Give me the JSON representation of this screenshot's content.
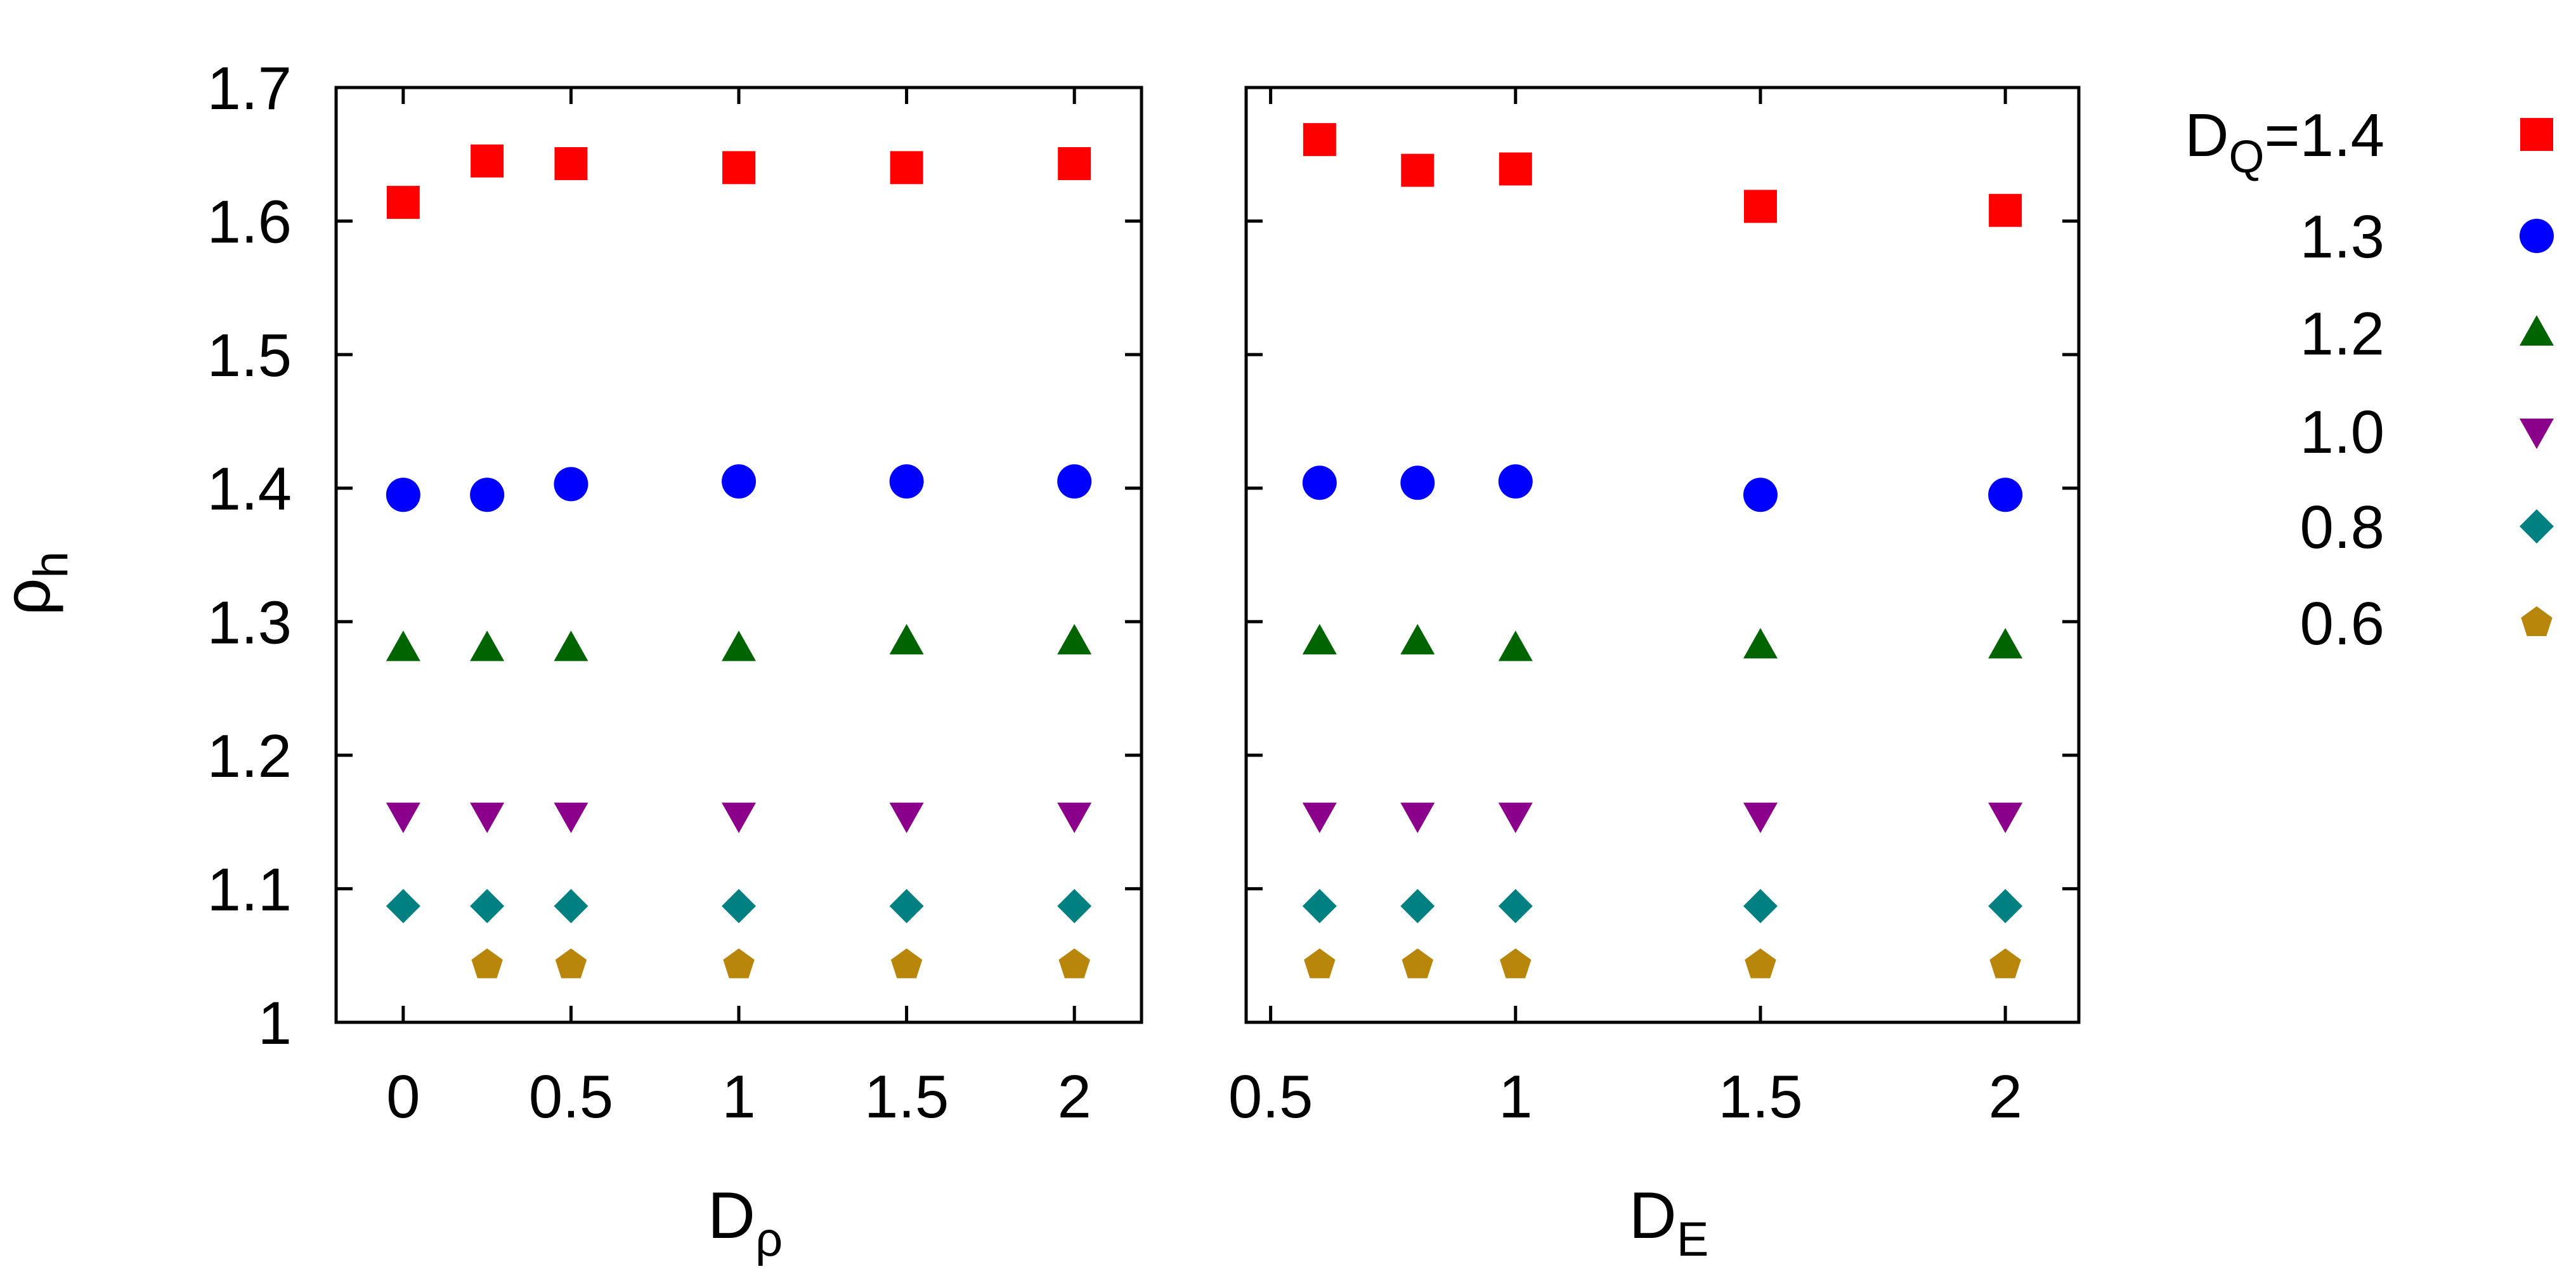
{
  "chart_data": {
    "type": "scatter",
    "ylabel_main": "ρ",
    "ylabel_sub": "h",
    "ylim": [
      1.0,
      1.7
    ],
    "yticks": [
      "1",
      "1.1",
      "1.2",
      "1.3",
      "1.4",
      "1.5",
      "1.6",
      "1.7"
    ],
    "grid": false,
    "legend": {
      "placement": "right",
      "title_main": "D",
      "title_sub": "Q",
      "title_suffix": "=",
      "labels": [
        "1.4",
        "1.3",
        "1.2",
        "1.0",
        "0.8",
        "0.6"
      ]
    },
    "series_style": [
      {
        "label": "1.4",
        "color": "#ff0000",
        "marker": "square"
      },
      {
        "label": "1.3",
        "color": "#0000ff",
        "marker": "circle"
      },
      {
        "label": "1.2",
        "color": "#006400",
        "marker": "triangle-up"
      },
      {
        "label": "1.0",
        "color": "#8b008b",
        "marker": "triangle-down"
      },
      {
        "label": "0.8",
        "color": "#008080",
        "marker": "diamond"
      },
      {
        "label": "0.6",
        "color": "#b8860b",
        "marker": "pentagon"
      }
    ],
    "panels": [
      {
        "xlabel_main": "D",
        "xlabel_sub": "ρ",
        "xlim": [
          -0.2,
          2.2
        ],
        "xticks": [
          "0",
          "0.5",
          "1",
          "1.5",
          "2"
        ],
        "series": [
          {
            "label": "1.4",
            "x": [
              0,
              0.25,
              0.5,
              1,
              1.5,
              2
            ],
            "y": [
              1.614,
              1.645,
              1.643,
              1.64,
              1.64,
              1.643
            ]
          },
          {
            "label": "1.3",
            "x": [
              0,
              0.25,
              0.5,
              1,
              1.5,
              2
            ],
            "y": [
              1.395,
              1.395,
              1.403,
              1.405,
              1.405,
              1.405
            ]
          },
          {
            "label": "1.2",
            "x": [
              0,
              0.25,
              0.5,
              1,
              1.5,
              2
            ],
            "y": [
              1.28,
              1.28,
              1.28,
              1.28,
              1.285,
              1.285
            ]
          },
          {
            "label": "1.0",
            "x": [
              0,
              0.25,
              0.5,
              1,
              1.5,
              2
            ],
            "y": [
              1.155,
              1.155,
              1.155,
              1.155,
              1.155,
              1.155
            ]
          },
          {
            "label": "0.8",
            "x": [
              0,
              0.25,
              0.5,
              1,
              1.5,
              2
            ],
            "y": [
              1.087,
              1.087,
              1.087,
              1.087,
              1.087,
              1.087
            ]
          },
          {
            "label": "0.6",
            "x": [
              0.25,
              0.5,
              1,
              1.5,
              2
            ],
            "y": [
              1.043,
              1.043,
              1.043,
              1.043,
              1.043
            ]
          }
        ]
      },
      {
        "xlabel_main": "D",
        "xlabel_sub": "E",
        "xlim": [
          0.45,
          2.15
        ],
        "xticks": [
          "0.5",
          "1",
          "1.5",
          "2"
        ],
        "series": [
          {
            "label": "1.4",
            "x": [
              0.6,
              0.8,
              1,
              1.5,
              2
            ],
            "y": [
              1.661,
              1.638,
              1.639,
              1.611,
              1.608
            ]
          },
          {
            "label": "1.3",
            "x": [
              0.6,
              0.8,
              1,
              1.5,
              2
            ],
            "y": [
              1.404,
              1.404,
              1.405,
              1.395,
              1.395
            ]
          },
          {
            "label": "1.2",
            "x": [
              0.6,
              0.8,
              1,
              1.5,
              2
            ],
            "y": [
              1.285,
              1.285,
              1.28,
              1.282,
              1.282
            ]
          },
          {
            "label": "1.0",
            "x": [
              0.6,
              0.8,
              1,
              1.5,
              2
            ],
            "y": [
              1.155,
              1.155,
              1.155,
              1.155,
              1.155
            ]
          },
          {
            "label": "0.8",
            "x": [
              0.6,
              0.8,
              1,
              1.5,
              2
            ],
            "y": [
              1.087,
              1.087,
              1.087,
              1.087,
              1.087
            ]
          },
          {
            "label": "0.6",
            "x": [
              0.6,
              0.8,
              1,
              1.5,
              2
            ],
            "y": [
              1.043,
              1.043,
              1.043,
              1.043,
              1.043
            ]
          }
        ]
      }
    ]
  }
}
